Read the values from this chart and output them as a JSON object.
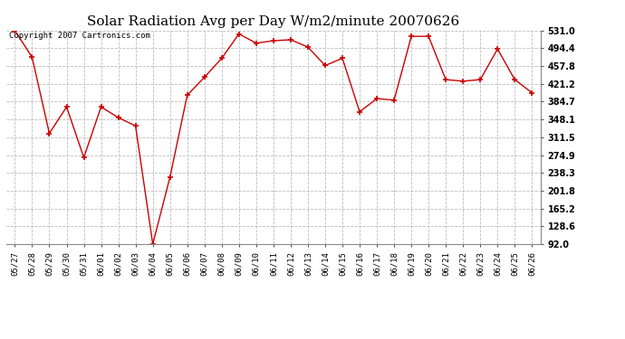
{
  "title": "Solar Radiation Avg per Day W/m2/minute 20070626",
  "copyright": "Copyright 2007 Cartronics.com",
  "x_labels": [
    "05/27",
    "05/28",
    "05/29",
    "05/30",
    "05/31",
    "06/01",
    "06/02",
    "06/03",
    "06/04",
    "06/05",
    "06/06",
    "06/07",
    "06/08",
    "06/09",
    "06/10",
    "06/11",
    "06/12",
    "06/13",
    "06/14",
    "06/15",
    "06/16",
    "06/17",
    "06/18",
    "06/19",
    "06/20",
    "06/21",
    "06/22",
    "06/23",
    "06/24",
    "06/25",
    "06/26"
  ],
  "y_values": [
    531.0,
    476.0,
    319.5,
    374.0,
    270.0,
    374.0,
    352.0,
    335.0,
    92.0,
    230.0,
    398.0,
    435.0,
    474.0,
    524.0,
    505.0,
    510.0,
    512.0,
    497.0,
    459.0,
    474.0,
    364.0,
    391.0,
    388.0,
    519.0,
    519.0,
    430.0,
    427.0,
    430.0,
    493.0,
    430.0,
    403.0
  ],
  "line_color": "#cc0000",
  "marker_color": "#cc0000",
  "bg_color": "#ffffff",
  "grid_color": "#bbbbbb",
  "y_ticks": [
    92.0,
    128.6,
    165.2,
    201.8,
    238.3,
    274.9,
    311.5,
    348.1,
    384.7,
    421.2,
    457.8,
    494.4,
    531.0
  ],
  "y_min": 92.0,
  "y_max": 531.0,
  "title_fontsize": 11,
  "copyright_fontsize": 6.5
}
